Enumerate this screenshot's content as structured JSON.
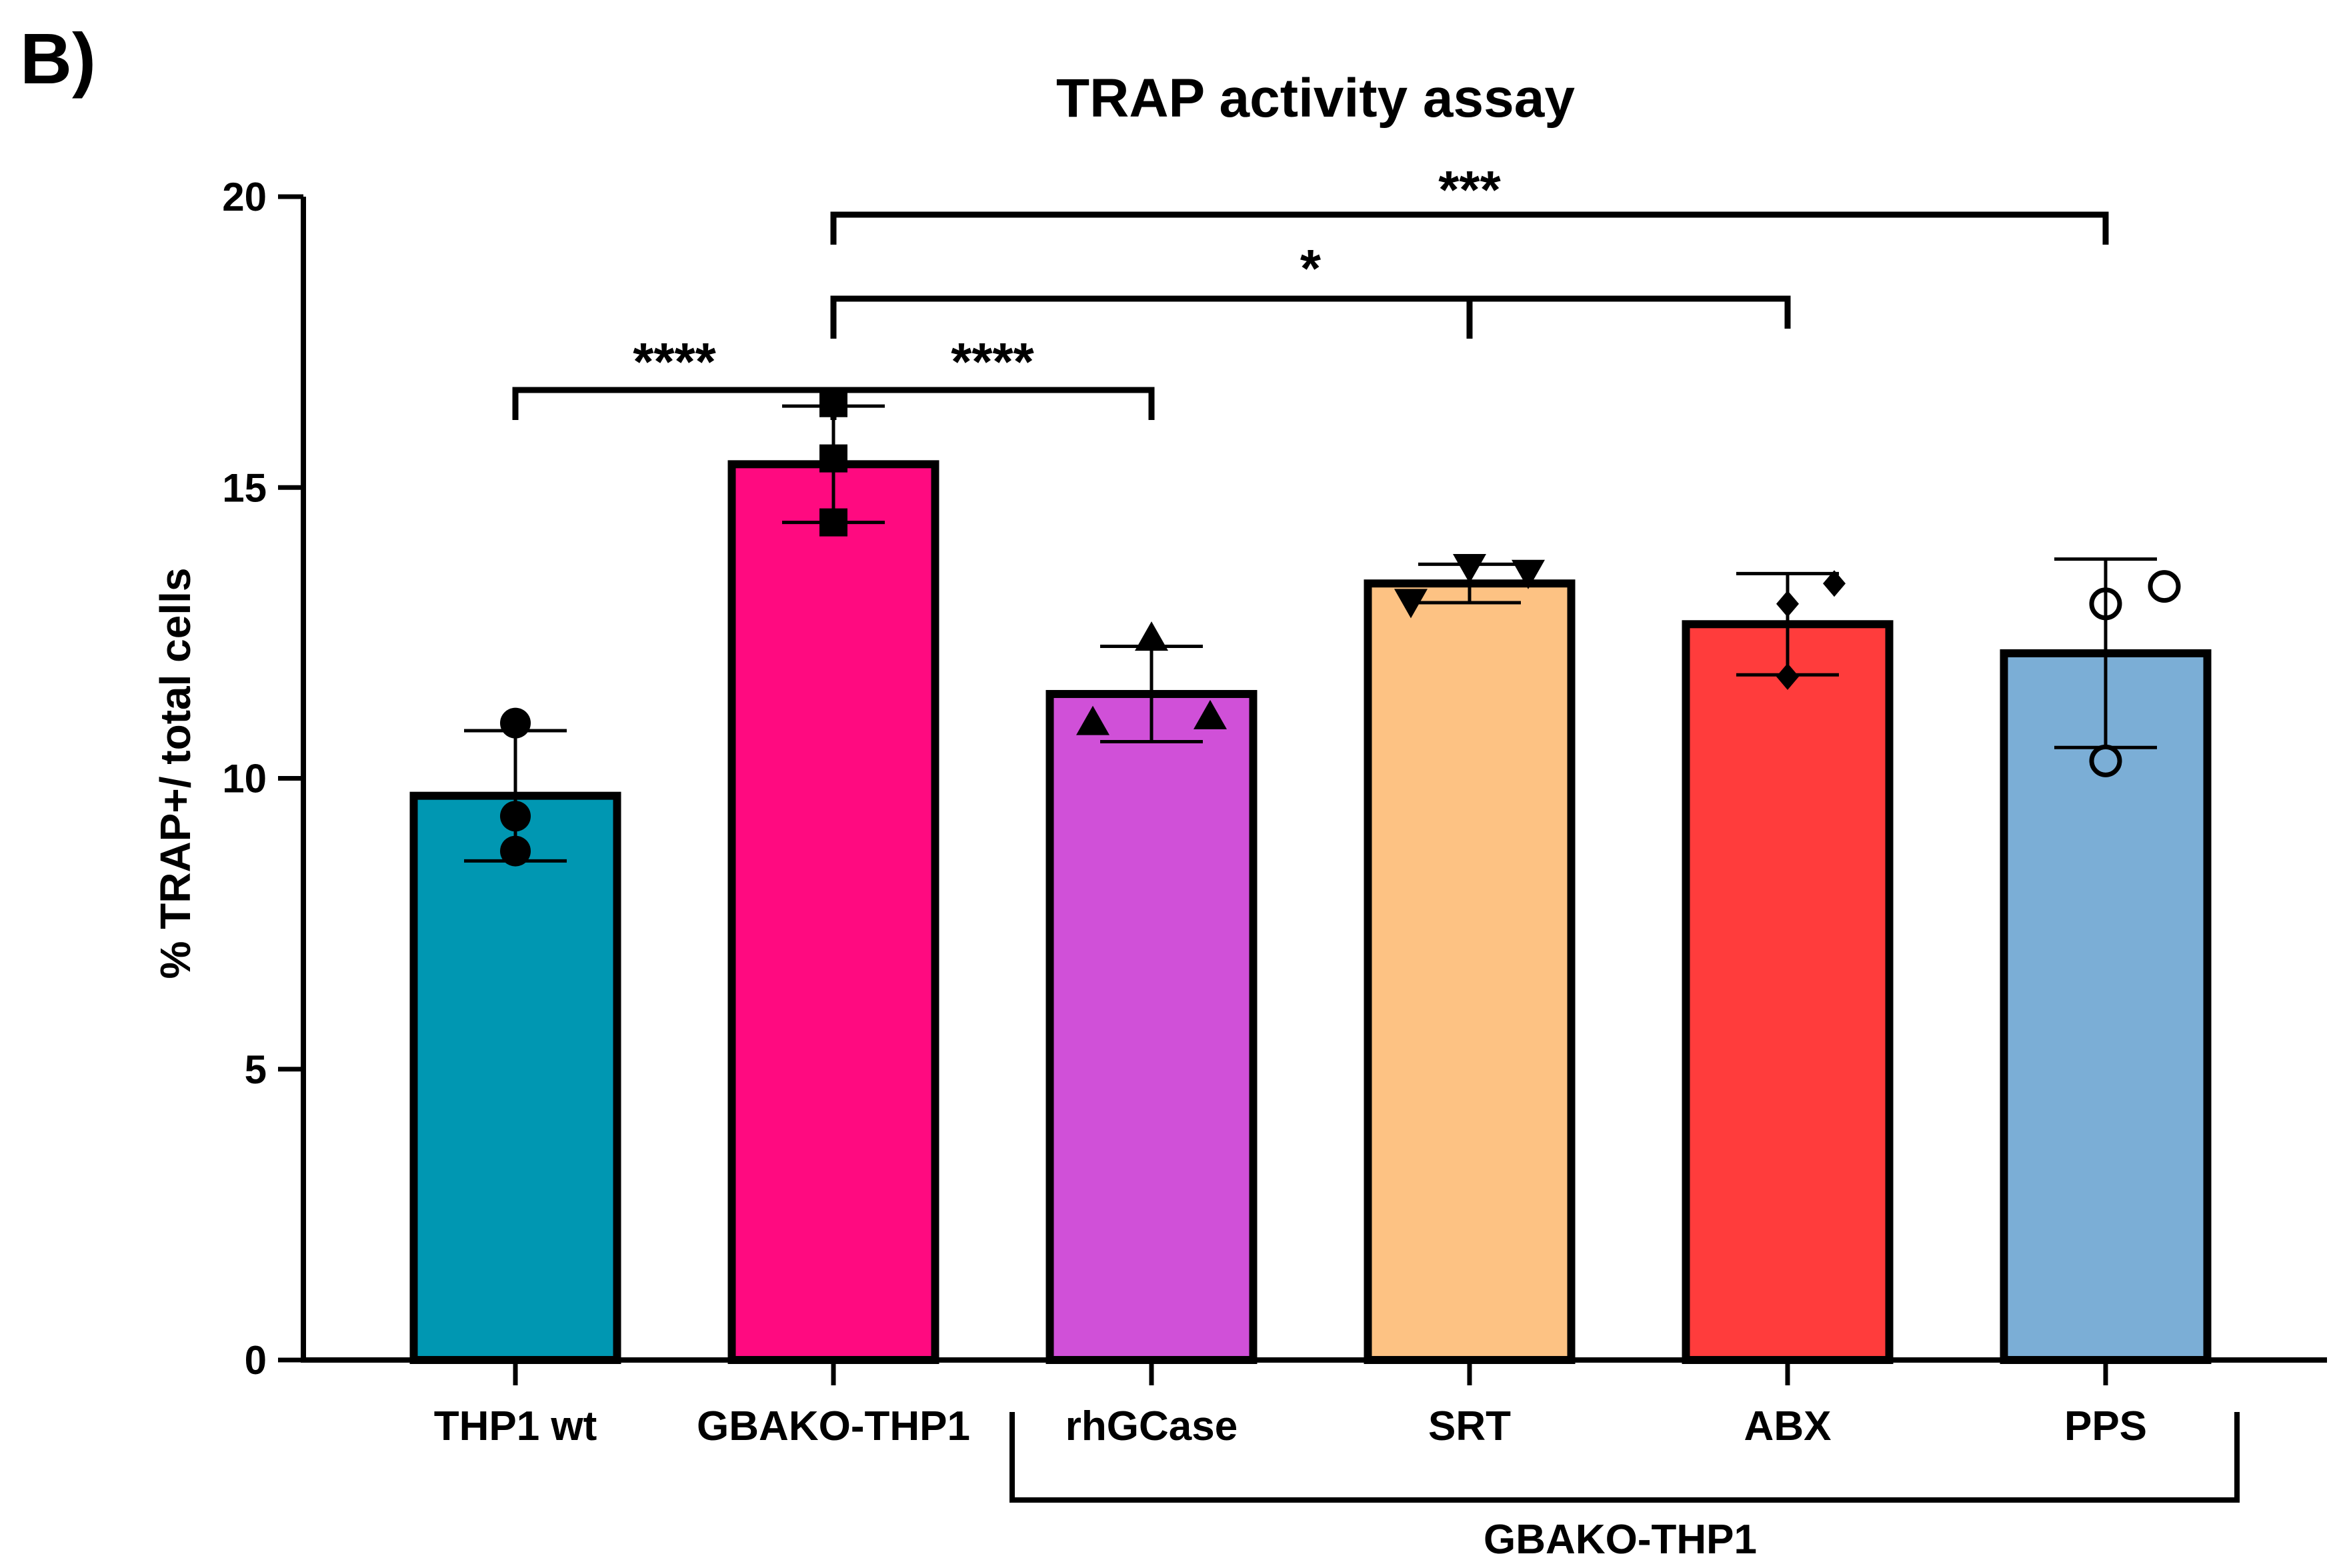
{
  "panel_label": "B)",
  "chart_data": {
    "type": "bar",
    "title": "TRAP activity assay",
    "xlabel": "",
    "ylabel": "% TRAP+/ total cells",
    "ylim": [
      0,
      20
    ],
    "yticks": [
      0,
      5,
      10,
      15,
      20
    ],
    "categories": [
      "THP1 wt",
      "GBAKO-THP1",
      "rhGCase",
      "SRT",
      "ABX",
      "PPS"
    ],
    "values": [
      9.7,
      15.4,
      11.45,
      13.35,
      12.65,
      12.15
    ],
    "error": [
      1.12,
      1.0,
      0.82,
      0.33,
      0.87,
      1.62
    ],
    "colors": [
      "#0097b2",
      "#ff0a80",
      "#d050d8",
      "#fdc283",
      "#ff3c3c",
      "#7baed6"
    ],
    "markers": [
      "circle",
      "square",
      "triangle-up",
      "triangle-down",
      "diamond",
      "circle-open"
    ],
    "points": [
      [
        10.95,
        9.35,
        8.75
      ],
      [
        16.45,
        15.5,
        14.4
      ],
      [
        12.4,
        10.95,
        11.05
      ],
      [
        13.05,
        13.65,
        13.55
      ],
      [
        13.0,
        11.75,
        13.35
      ],
      [
        13.0,
        10.3,
        13.3
      ]
    ],
    "group_bracket_label": "GBAKO-THP1",
    "significance": [
      {
        "label": "****",
        "from": "THP1 wt",
        "to": "GBAKO-THP1"
      },
      {
        "label": "****",
        "from": "GBAKO-THP1",
        "to": "rhGCase"
      },
      {
        "label": "*",
        "from": "GBAKO-THP1",
        "to": "SRT + ABX"
      },
      {
        "label": "***",
        "from": "GBAKO-THP1",
        "to": "PPS"
      }
    ]
  }
}
